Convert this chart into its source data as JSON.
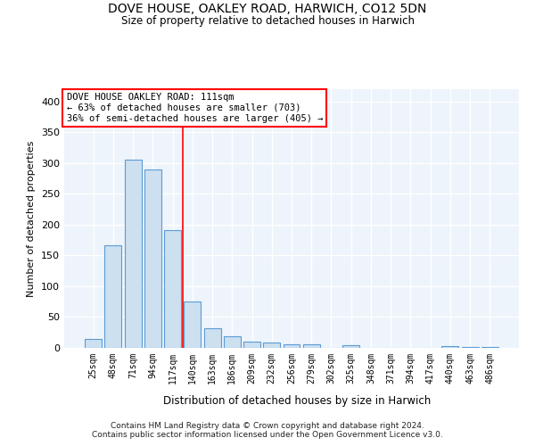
{
  "title": "DOVE HOUSE, OAKLEY ROAD, HARWICH, CO12 5DN",
  "subtitle": "Size of property relative to detached houses in Harwich",
  "xlabel": "Distribution of detached houses by size in Harwich",
  "ylabel": "Number of detached properties",
  "categories": [
    "25sqm",
    "48sqm",
    "71sqm",
    "94sqm",
    "117sqm",
    "140sqm",
    "163sqm",
    "186sqm",
    "209sqm",
    "232sqm",
    "256sqm",
    "279sqm",
    "302sqm",
    "325sqm",
    "348sqm",
    "371sqm",
    "394sqm",
    "417sqm",
    "440sqm",
    "463sqm",
    "486sqm"
  ],
  "values": [
    15,
    167,
    305,
    289,
    191,
    75,
    32,
    19,
    10,
    9,
    6,
    6,
    0,
    5,
    0,
    0,
    0,
    0,
    3,
    1,
    2
  ],
  "bar_color": "#cce0f0",
  "bar_edge_color": "#5b9bd5",
  "background_color": "#eef4fb",
  "grid_color": "#ffffff",
  "vline_x": 4.5,
  "vline_color": "red",
  "annotation_box_text": "DOVE HOUSE OAKLEY ROAD: 111sqm\n← 63% of detached houses are smaller (703)\n36% of semi-detached houses are larger (405) →",
  "footer": "Contains HM Land Registry data © Crown copyright and database right 2024.\nContains public sector information licensed under the Open Government Licence v3.0.",
  "ylim": [
    0,
    420
  ],
  "yticks": [
    0,
    50,
    100,
    150,
    200,
    250,
    300,
    350,
    400
  ]
}
